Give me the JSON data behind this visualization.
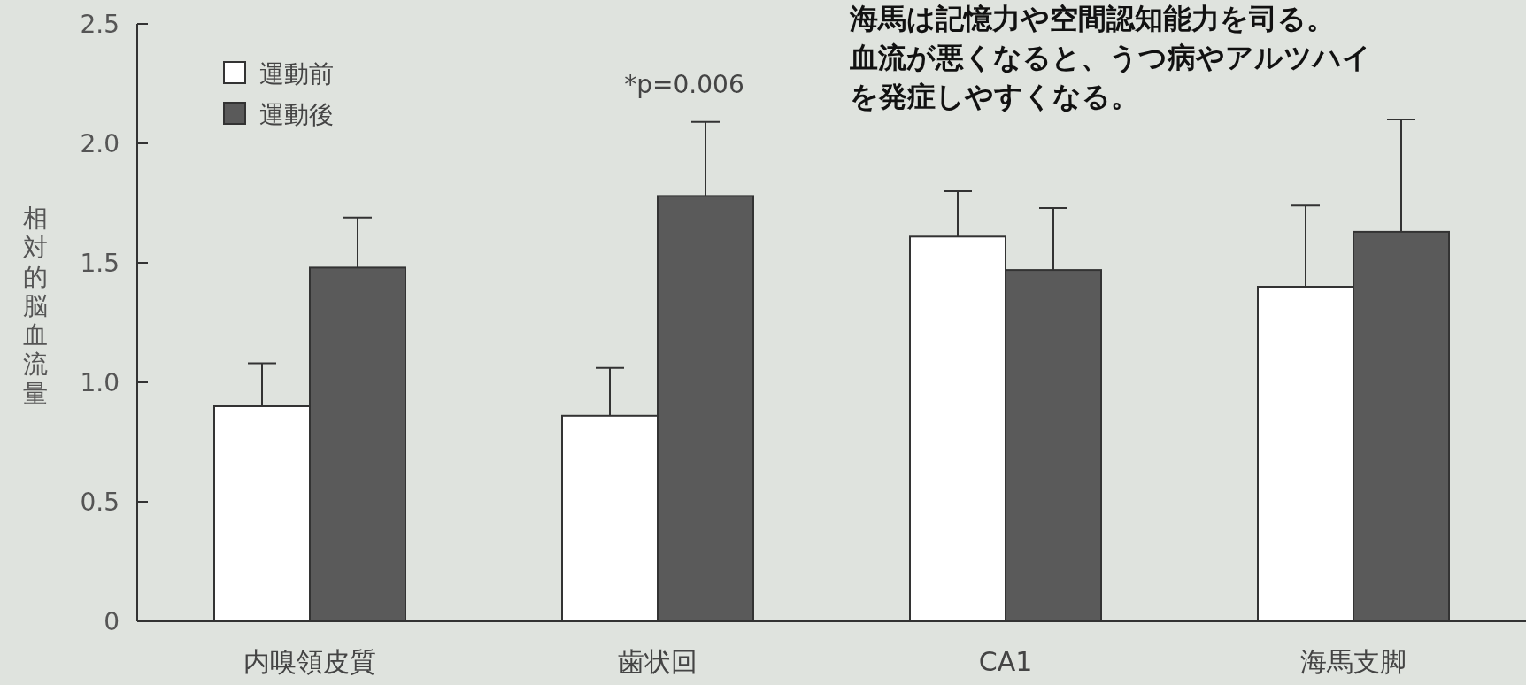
{
  "chart_data": {
    "type": "bar",
    "ylabel": "相対的脳血流量",
    "categories": [
      "内嗅領皮質",
      "歯状回",
      "CA1",
      "海馬支脚"
    ],
    "series": [
      {
        "name": "運動前",
        "color": "#ffffff",
        "values": [
          0.9,
          0.86,
          1.61,
          1.4
        ],
        "errors": [
          [
            0.9,
            1.08
          ],
          [
            0.86,
            1.06
          ],
          [
            1.61,
            1.8
          ],
          [
            1.4,
            1.74
          ]
        ]
      },
      {
        "name": "運動後",
        "color": "#5a5a5a",
        "values": [
          1.48,
          1.78,
          1.47,
          1.63
        ],
        "errors": [
          [
            1.48,
            1.69
          ],
          [
            1.78,
            2.09
          ],
          [
            1.47,
            1.73
          ],
          [
            1.63,
            2.1
          ]
        ]
      }
    ],
    "ylim": [
      0,
      2.5
    ],
    "yticks": [
      {
        "value": 0,
        "label": "0"
      },
      0.5,
      {
        "value": 1,
        "label": "1.0"
      },
      1.5,
      {
        "value": 2,
        "label": "2.0"
      },
      2.5
    ],
    "legend": "top left",
    "grid": false,
    "annotations": [
      "*p=0.006",
      "海馬は記憶力や空間認知能力を司る。",
      "血流が悪くなると、うつ病やアルツハイ",
      "を発症しやすくなる。"
    ]
  }
}
